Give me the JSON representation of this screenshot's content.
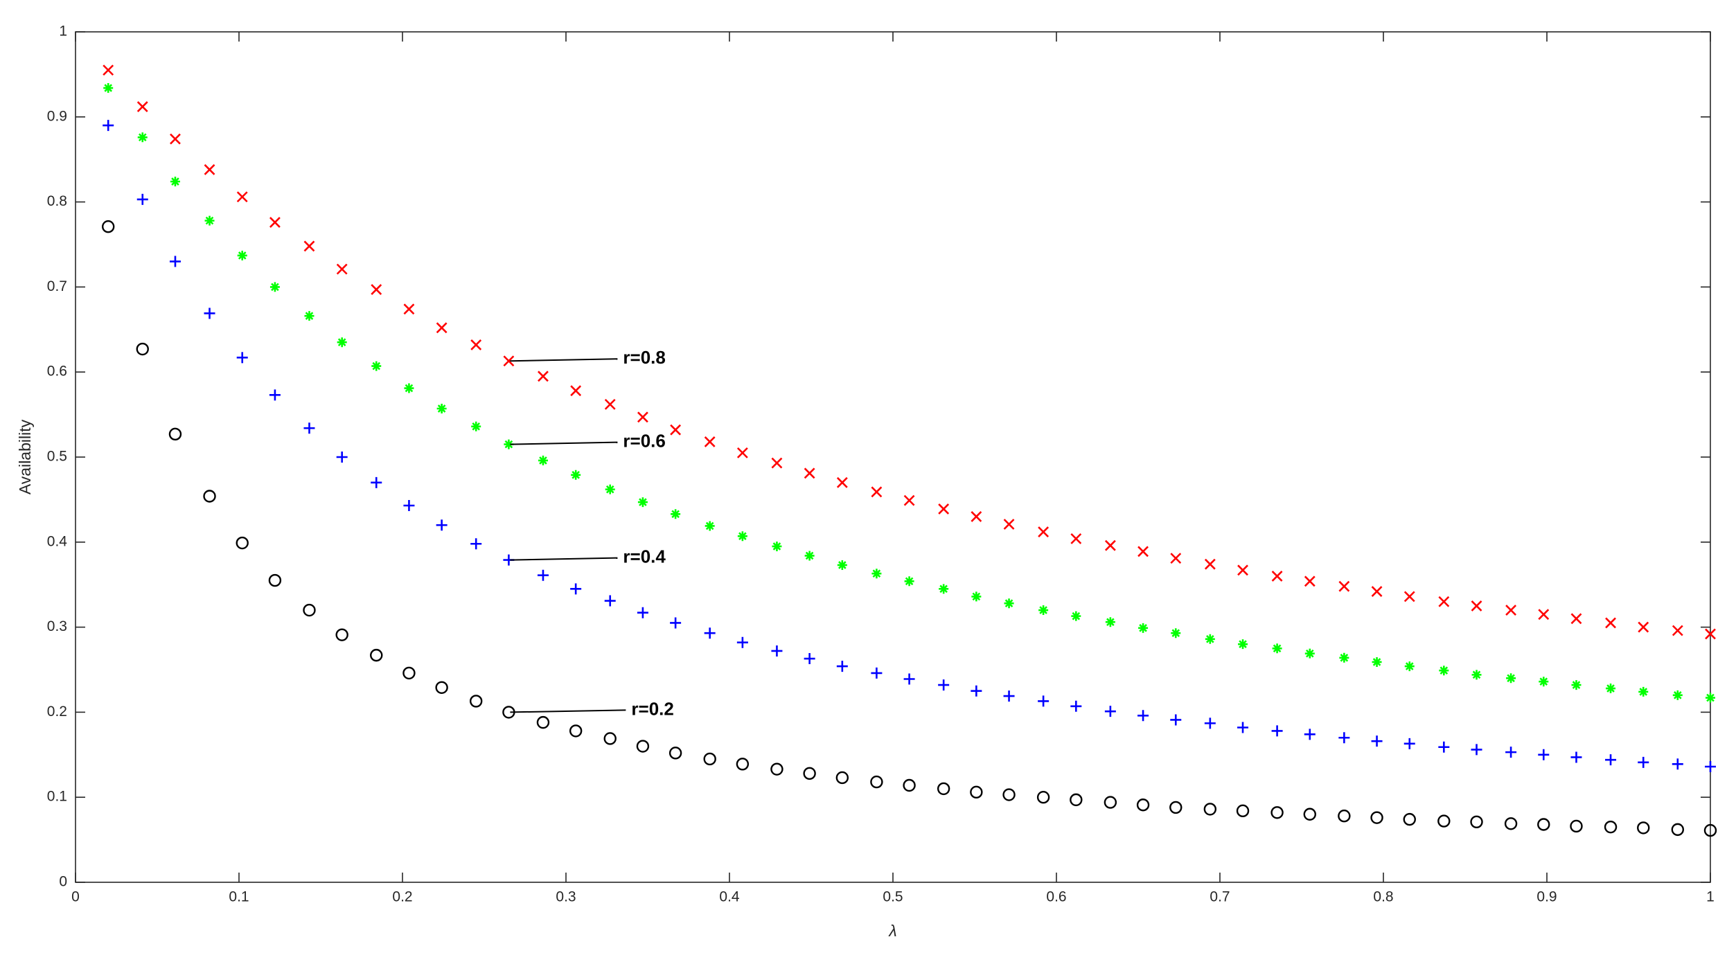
{
  "chart_data": {
    "type": "scatter",
    "xlabel": "λ",
    "ylabel": "Availability",
    "xlim": [
      0,
      1
    ],
    "ylim": [
      0,
      1
    ],
    "xticks": [
      0,
      0.1,
      0.2,
      0.3,
      0.4,
      0.5,
      0.6,
      0.7,
      0.8,
      0.9,
      1
    ],
    "yticks": [
      0,
      0.1,
      0.2,
      0.3,
      0.4,
      0.5,
      0.6,
      0.7,
      0.8,
      0.9,
      1
    ],
    "grid": false,
    "x": [
      0.02,
      0.041,
      0.061,
      0.082,
      0.102,
      0.122,
      0.143,
      0.163,
      0.184,
      0.204,
      0.224,
      0.245,
      0.265,
      0.286,
      0.306,
      0.327,
      0.347,
      0.367,
      0.388,
      0.408,
      0.429,
      0.449,
      0.469,
      0.49,
      0.51,
      0.531,
      0.551,
      0.571,
      0.592,
      0.612,
      0.633,
      0.653,
      0.673,
      0.694,
      0.714,
      0.735,
      0.755,
      0.776,
      0.796,
      0.816,
      0.837,
      0.857,
      0.878,
      0.898,
      0.918,
      0.939,
      0.959,
      0.98,
      1.0
    ],
    "series": [
      {
        "color": "#ff0000",
        "marker": "x",
        "values": [
          0.955,
          0.912,
          0.874,
          0.838,
          0.806,
          0.776,
          0.748,
          0.721,
          0.697,
          0.674,
          0.652,
          0.632,
          0.613,
          0.595,
          0.578,
          0.562,
          0.547,
          0.532,
          0.518,
          0.505,
          0.493,
          0.481,
          0.47,
          0.459,
          0.449,
          0.439,
          0.43,
          0.421,
          0.412,
          0.404,
          0.396,
          0.389,
          0.381,
          0.374,
          0.367,
          0.36,
          0.354,
          0.348,
          0.342,
          0.336,
          0.33,
          0.325,
          0.32,
          0.315,
          0.31,
          0.305,
          0.3,
          0.296,
          0.292
        ]
      },
      {
        "color": "#00ff00",
        "marker": "*",
        "values": [
          0.934,
          0.876,
          0.824,
          0.778,
          0.737,
          0.7,
          0.666,
          0.635,
          0.607,
          0.581,
          0.557,
          0.536,
          0.515,
          0.496,
          0.479,
          0.462,
          0.447,
          0.433,
          0.419,
          0.407,
          0.395,
          0.384,
          0.373,
          0.363,
          0.354,
          0.345,
          0.336,
          0.328,
          0.32,
          0.313,
          0.306,
          0.299,
          0.293,
          0.286,
          0.28,
          0.275,
          0.269,
          0.264,
          0.259,
          0.254,
          0.249,
          0.244,
          0.24,
          0.236,
          0.232,
          0.228,
          0.224,
          0.22,
          0.217
        ]
      },
      {
        "color": "#0000ff",
        "marker": "+",
        "values": [
          0.89,
          0.803,
          0.73,
          0.669,
          0.617,
          0.573,
          0.534,
          0.5,
          0.47,
          0.443,
          0.42,
          0.398,
          0.379,
          0.361,
          0.345,
          0.331,
          0.317,
          0.305,
          0.293,
          0.282,
          0.272,
          0.263,
          0.254,
          0.246,
          0.239,
          0.232,
          0.225,
          0.219,
          0.213,
          0.207,
          0.201,
          0.196,
          0.191,
          0.187,
          0.182,
          0.178,
          0.174,
          0.17,
          0.166,
          0.163,
          0.159,
          0.156,
          0.153,
          0.15,
          0.147,
          0.144,
          0.141,
          0.139,
          0.136
        ]
      },
      {
        "color": "#000000",
        "marker": "o",
        "values": [
          0.771,
          0.627,
          0.527,
          0.454,
          0.399,
          0.355,
          0.32,
          0.291,
          0.267,
          0.246,
          0.229,
          0.213,
          0.2,
          0.188,
          0.178,
          0.169,
          0.16,
          0.152,
          0.145,
          0.139,
          0.133,
          0.128,
          0.123,
          0.118,
          0.114,
          0.11,
          0.106,
          0.103,
          0.1,
          0.097,
          0.094,
          0.091,
          0.088,
          0.086,
          0.084,
          0.082,
          0.08,
          0.078,
          0.076,
          0.074,
          0.072,
          0.071,
          0.069,
          0.068,
          0.066,
          0.065,
          0.064,
          0.062,
          0.061
        ]
      }
    ],
    "annotations": [
      "r=0.8",
      "r=0.6",
      "r=0.4",
      "r=0.2"
    ]
  }
}
